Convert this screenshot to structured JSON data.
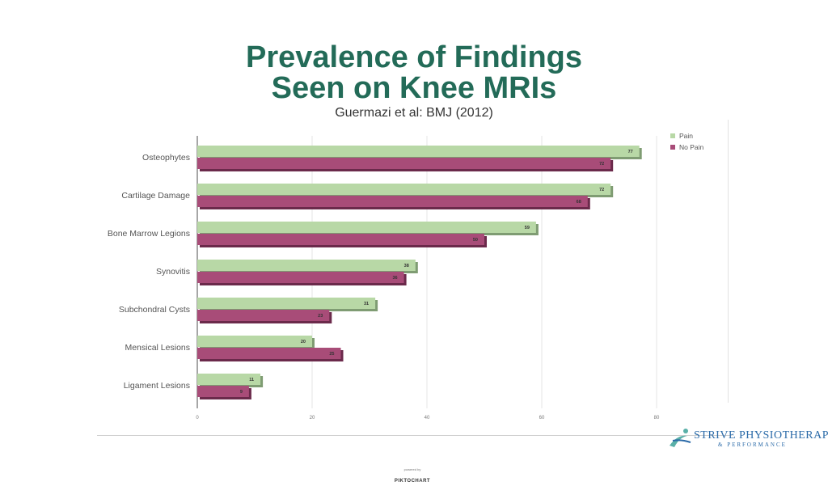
{
  "chart_data": {
    "type": "bar",
    "orientation": "horizontal",
    "title_line1": "Prevalence of Findings",
    "title_line2": "Seen on Knee MRIs",
    "subtitle": "Guermazi et al: BMJ (2012)",
    "categories": [
      "Osteophytes",
      "Cartilage Damage",
      "Bone Marrow Legions",
      "Synovitis",
      "Subchondral Cysts",
      "Mensical Lesions",
      "Ligament Lesions"
    ],
    "series": [
      {
        "name": "Pain",
        "values": [
          77,
          72,
          59,
          38,
          31,
          20,
          11
        ],
        "color": "#b8d8a6",
        "shade": "#7f9c73"
      },
      {
        "name": "No Pain",
        "values": [
          72,
          68,
          50,
          36,
          23,
          25,
          9
        ],
        "color": "#a84c78",
        "shade": "#6b2a4b"
      }
    ],
    "xlim": [
      0,
      80
    ],
    "xticks": [
      0,
      20,
      40,
      60,
      80
    ],
    "grid": true,
    "legend_position": "top-right"
  },
  "branding": {
    "logo_main": "STRIVE PHYSIOTHERAPY",
    "logo_sub": "& PERFORMANCE",
    "powered_by": "powered by",
    "piktochart": "PIKTOCHART"
  }
}
